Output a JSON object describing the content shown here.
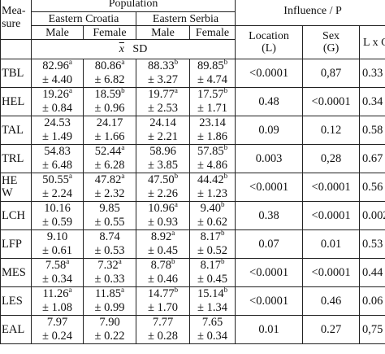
{
  "header": {
    "measure_label": "Mea-\nsure",
    "population_label": "Population",
    "regions": [
      "Eastern Croatia",
      "Eastern Serbia"
    ],
    "sexes": [
      "Male",
      "Female",
      "Male",
      "Female"
    ],
    "influence_label": "Influence / P",
    "influence_cols": [
      "Location\n(L)",
      "Sex\n(G)",
      "L x G"
    ],
    "stat_symbol": "x",
    "stat_label": "SD"
  },
  "rows": [
    {
      "measure": "TBL",
      "cells": [
        [
          "82.96",
          "a",
          "± 4.40"
        ],
        [
          "80.86",
          "a",
          "± 6.82"
        ],
        [
          "88.33",
          "b",
          "± 3.27"
        ],
        [
          "89.85",
          "b",
          "± 4.74"
        ]
      ],
      "p": [
        "<0.0001",
        "0,87",
        "0.33"
      ]
    },
    {
      "measure": "HEL",
      "cells": [
        [
          "19.26",
          "a",
          "± 0.84"
        ],
        [
          "18.59",
          "b",
          "± 0.96"
        ],
        [
          "19.77",
          "a",
          "± 2.53"
        ],
        [
          "17.57",
          "b",
          "± 1.71"
        ]
      ],
      "p": [
        "0.48",
        "<0.0001",
        "0.34"
      ]
    },
    {
      "measure": "TAL",
      "cells": [
        [
          "24.53",
          "",
          "± 1.49"
        ],
        [
          "24.17",
          "",
          "± 1.66"
        ],
        [
          "24.14",
          "",
          "± 2.21"
        ],
        [
          "23.14",
          "",
          "± 1.86"
        ]
      ],
      "p": [
        "0.09",
        "0.12",
        "0.58"
      ]
    },
    {
      "measure": "TRL",
      "cells": [
        [
          "54.83",
          "",
          "± 6.48"
        ],
        [
          "52.44",
          "a",
          "± 6.28"
        ],
        [
          "58.96",
          "",
          "± 3.85"
        ],
        [
          "57.85",
          "b",
          "± 4.86"
        ]
      ],
      "p": [
        "0.003",
        "0,28",
        "0.67"
      ]
    },
    {
      "measure": "HE\nW",
      "cells": [
        [
          "50.55",
          "a",
          "± 2.24"
        ],
        [
          "47.82",
          "a",
          "± 2.32"
        ],
        [
          "47.50",
          "b",
          "± 2.26"
        ],
        [
          "44.42",
          "b",
          "± 1.23"
        ]
      ],
      "p": [
        "<0.0001",
        "<0.0001",
        "0.56"
      ]
    },
    {
      "measure": "LCH",
      "cells": [
        [
          "10.16",
          "",
          "± 0.59"
        ],
        [
          "9.85",
          "",
          "± 0.55"
        ],
        [
          "10.96",
          "a",
          "± 0.93"
        ],
        [
          "9.40",
          "b",
          "± 0.62"
        ]
      ],
      "p": [
        "0.38",
        "<0.0001",
        "0.002"
      ]
    },
    {
      "measure": "LFP",
      "cells": [
        [
          "9.10",
          "",
          "± 0.61"
        ],
        [
          "8.74",
          "",
          "± 0.53"
        ],
        [
          "8.92",
          "a",
          "± 0.45"
        ],
        [
          "8.17",
          "b",
          "± 0.52"
        ]
      ],
      "p": [
        "0.07",
        "0.01",
        "0.53"
      ]
    },
    {
      "measure": "MES",
      "cells": [
        [
          "7.58",
          "a",
          "± 0.34"
        ],
        [
          "7.32",
          "a",
          "± 0.33"
        ],
        [
          "8.78",
          "b",
          "± 0.46"
        ],
        [
          "8.17",
          "b",
          "± 0.45"
        ]
      ],
      "p": [
        "<0.0001",
        "<0.0001",
        "0.44"
      ]
    },
    {
      "measure": "LES",
      "cells": [
        [
          "11.26",
          "a",
          "± 1.08"
        ],
        [
          "11.85",
          "a",
          "± 0.99"
        ],
        [
          "14.77",
          "b",
          "± 1.70"
        ],
        [
          "15.14",
          "b",
          "± 1.34"
        ]
      ],
      "p": [
        "<0.0001",
        "0.46",
        "0.06"
      ]
    },
    {
      "measure": "EAL",
      "cells": [
        [
          "7.97",
          "",
          "± 0.24"
        ],
        [
          "7.90",
          "",
          "± 0.22"
        ],
        [
          "7.77",
          "",
          "± 0.28"
        ],
        [
          "7.65",
          "",
          "± 0.34"
        ]
      ],
      "p": [
        "0.01",
        "0.27",
        "0,75"
      ]
    }
  ]
}
